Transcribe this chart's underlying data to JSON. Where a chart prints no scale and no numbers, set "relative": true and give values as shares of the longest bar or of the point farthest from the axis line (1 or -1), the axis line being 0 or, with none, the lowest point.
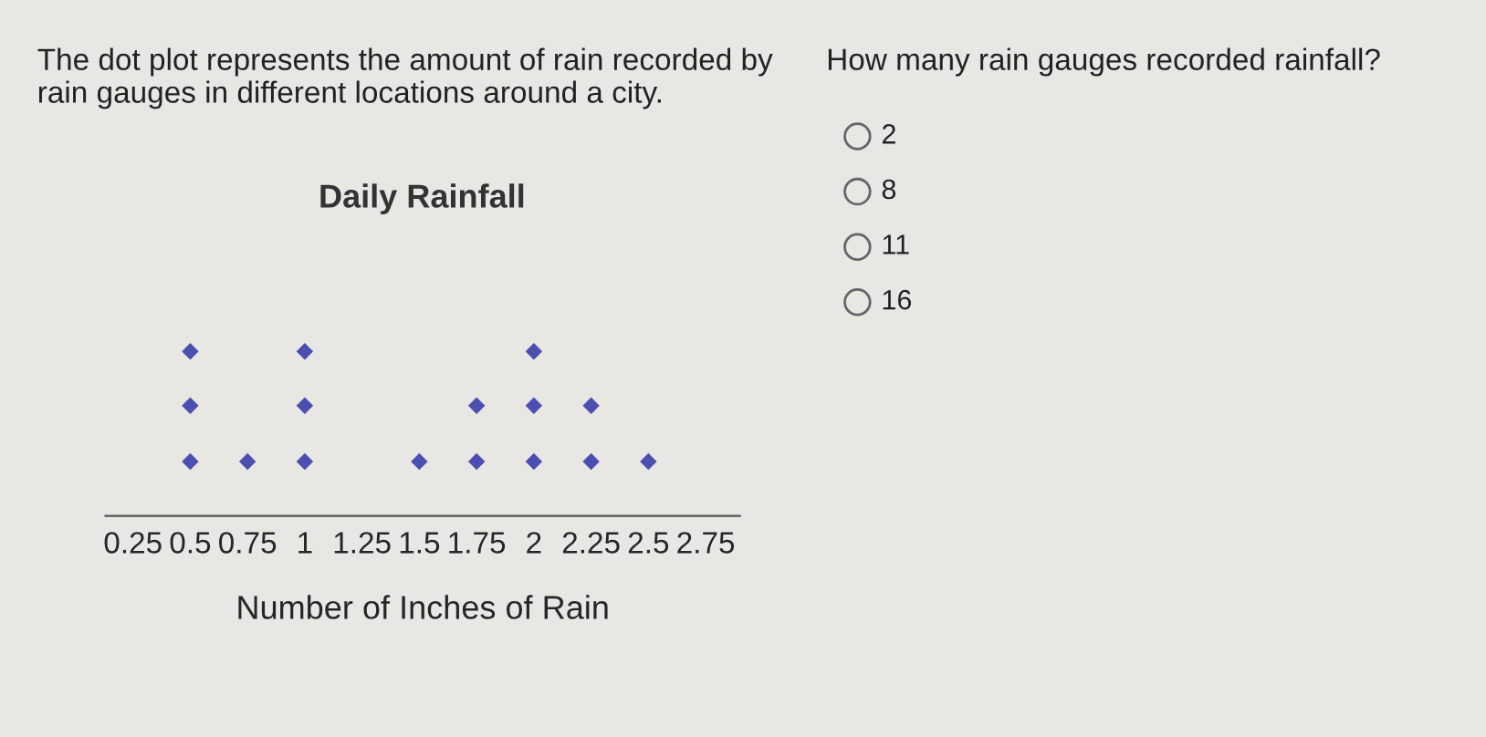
{
  "chart_data": {
    "type": "scatter",
    "title": "Daily Rainfall",
    "xlabel": "Number of Inches of Rain",
    "annotations": [
      "The dot plot represents the amount of rain recorded by rain gauges in different locations around a city.",
      "How many rain gauges recorded rainfall?",
      "2",
      "8",
      "11",
      "16"
    ],
    "relative": true,
    "series": [
      {
        "color": "#4b4fb0",
        "x": [
          0.5,
          0.5,
          0.5,
          0.75,
          1,
          1,
          1,
          1.5,
          1.75,
          1.75,
          2,
          2,
          2,
          2.25,
          2.25,
          2.5
        ],
        "values": [
          0.33,
          0.67,
          1,
          0.33,
          0.33,
          0.67,
          1,
          0.33,
          0.33,
          0.67,
          0.33,
          0.67,
          1,
          0.33,
          0.67,
          0.33
        ]
      }
    ],
    "xlim": [
      0.13,
      2.9
    ],
    "xticks": [
      0.25,
      0.5,
      0.75,
      1,
      1.25,
      1.5,
      1.75,
      2,
      2.25,
      2.5,
      2.75
    ],
    "marker": "diamond",
    "grid": false,
    "legend": false
  }
}
